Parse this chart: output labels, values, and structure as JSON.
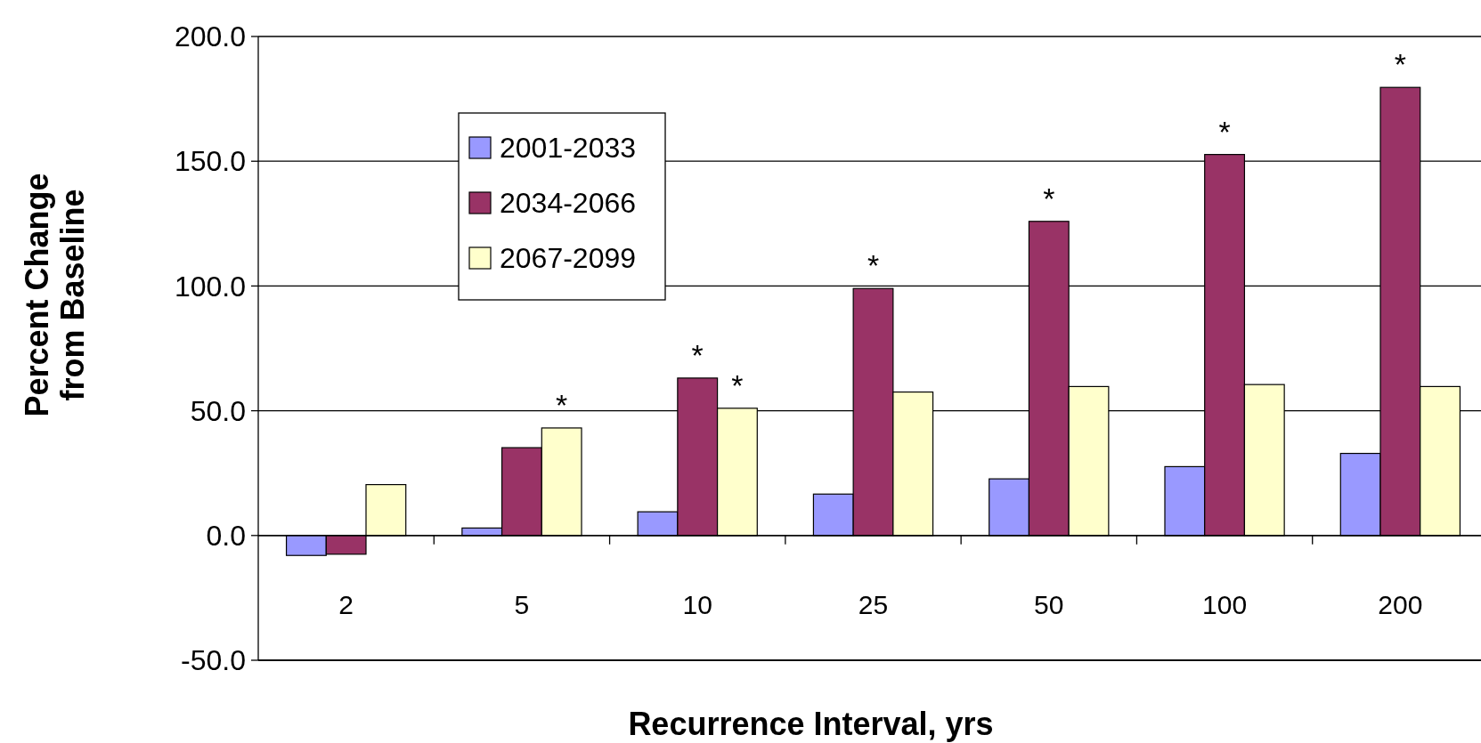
{
  "chart_data": {
    "type": "bar",
    "xlabel": "Recurrence Interval, yrs",
    "ylabel": "Percent Change\nfrom Baseline",
    "categories": [
      "2",
      "5",
      "10",
      "25",
      "50",
      "100",
      "200"
    ],
    "series": [
      {
        "name": "2001-2033",
        "color": "#9999ff",
        "values": [
          -8,
          3,
          9.5,
          16.6,
          22.7,
          27.6,
          32.9
        ]
      },
      {
        "name": "2034-2066",
        "color": "#993366",
        "values": [
          -7.5,
          35.2,
          63.1,
          99,
          125.9,
          152.7,
          179.6
        ],
        "value_labels": [
          null,
          null,
          "*",
          "*",
          "*",
          "*",
          "*"
        ]
      },
      {
        "name": "2067-2099",
        "color": "#ffffcc",
        "values": [
          20.4,
          43.1,
          51,
          57.5,
          59.7,
          60.5,
          59.7
        ],
        "value_labels": [
          null,
          "*",
          "*",
          null,
          null,
          null,
          null
        ]
      }
    ],
    "ylim": [
      -50,
      200
    ],
    "yticks": [
      {
        "value": -50,
        "label": "-50.0"
      },
      {
        "value": 0,
        "label": "0.0"
      },
      {
        "value": 50,
        "label": "50.0"
      },
      {
        "value": 100,
        "label": "100.0"
      },
      {
        "value": 150,
        "label": "150.0"
      },
      {
        "value": 200,
        "label": "200.0"
      }
    ],
    "grid": "y",
    "legend": "top left"
  }
}
